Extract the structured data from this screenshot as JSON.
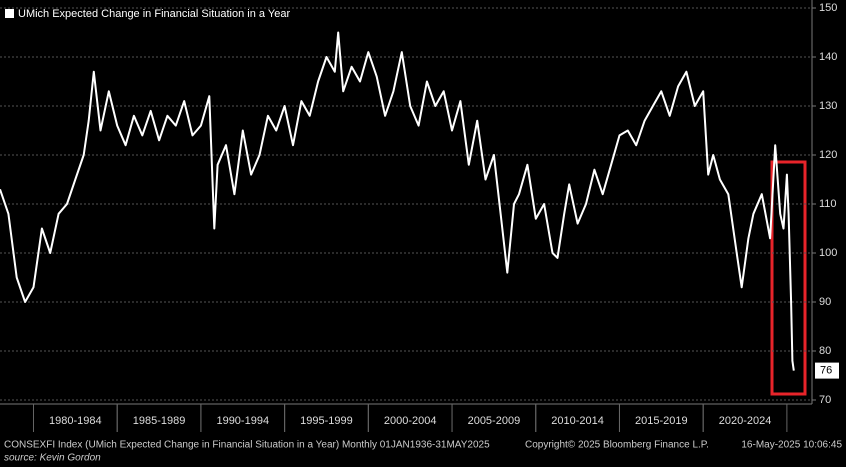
{
  "chart_data": {
    "type": "line",
    "legend_title": "UMich Expected Change in Financial Situation in a Year",
    "series": [
      {
        "name": "UMich Expected Change in Financial Situation in a Year",
        "color": "#ffffff",
        "x": [
          1978,
          1978.5,
          1979,
          1979.5,
          1980,
          1980.5,
          1981,
          1981.5,
          1982,
          1982.5,
          1983,
          1983.3,
          1983.6,
          1984,
          1984.5,
          1985,
          1985.5,
          1986,
          1986.5,
          1987,
          1987.5,
          1988,
          1988.5,
          1989,
          1989.5,
          1990,
          1990.5,
          1990.8,
          1991,
          1991.5,
          1992,
          1992.5,
          1993,
          1993.5,
          1994,
          1994.5,
          1995,
          1995.5,
          1996,
          1996.5,
          1997,
          1997.5,
          1998,
          1998.2,
          1998.5,
          1999,
          1999.5,
          2000,
          2000.5,
          2001,
          2001.5,
          2002,
          2002.5,
          2003,
          2003.5,
          2004,
          2004.5,
          2005,
          2005.5,
          2006,
          2006.5,
          2007,
          2007.5,
          2008,
          2008.3,
          2008.7,
          2009,
          2009.5,
          2010,
          2010.5,
          2011,
          2011.3,
          2011.7,
          2012,
          2012.5,
          2013,
          2013.5,
          2014,
          2014.5,
          2015,
          2015.5,
          2016,
          2016.5,
          2017,
          2017.5,
          2018,
          2018.5,
          2019,
          2019.5,
          2020,
          2020.3,
          2020.6,
          2021,
          2021.5,
          2022,
          2022.3,
          2022.7,
          2023,
          2023.5,
          2024,
          2024.3,
          2024.6,
          2024.8,
          2025,
          2025.1,
          2025.25,
          2025.33,
          2025.41
        ],
        "values": [
          113,
          108,
          95,
          90,
          93,
          105,
          100,
          108,
          110,
          115,
          120,
          127,
          137,
          125,
          133,
          126,
          122,
          128,
          124,
          129,
          123,
          128,
          126,
          131,
          124,
          126,
          132,
          105,
          118,
          122,
          112,
          125,
          116,
          120,
          128,
          125,
          130,
          122,
          131,
          128,
          135,
          140,
          137,
          145,
          133,
          138,
          135,
          141,
          136,
          128,
          133,
          141,
          130,
          126,
          135,
          130,
          133,
          125,
          131,
          118,
          127,
          115,
          120,
          105,
          96,
          110,
          112,
          118,
          107,
          110,
          100,
          99,
          108,
          114,
          106,
          110,
          117,
          112,
          118,
          124,
          125,
          122,
          127,
          130,
          133,
          128,
          134,
          137,
          130,
          133,
          116,
          120,
          115,
          112,
          100,
          93,
          103,
          108,
          112,
          103,
          122,
          108,
          105,
          116,
          108,
          90,
          78,
          76
        ]
      }
    ],
    "xlim": [
      1978,
      2026.5
    ],
    "xticks": [
      {
        "value": 1982.5,
        "label": "1980-1984"
      },
      {
        "value": 1987.5,
        "label": "1985-1989"
      },
      {
        "value": 1992.5,
        "label": "1990-1994"
      },
      {
        "value": 1997.5,
        "label": "1995-1999"
      },
      {
        "value": 2002.5,
        "label": "2000-2004"
      },
      {
        "value": 2007.5,
        "label": "2005-2009"
      },
      {
        "value": 2012.5,
        "label": "2010-2014"
      },
      {
        "value": 2017.5,
        "label": "2015-2019"
      },
      {
        "value": 2022.5,
        "label": "2020-2024"
      }
    ],
    "ylim": [
      70,
      150
    ],
    "yticks": [
      70,
      80,
      90,
      100,
      110,
      120,
      130,
      140,
      150
    ],
    "grid": true,
    "footer": {
      "index": "CONSEXFI Index (UMich Expected Change in Financial Situation in a Year)  Monthly 01JAN1936-31MAY2025",
      "copyright": "Copyright© 2025 Bloomberg Finance L.P.",
      "timestamp": "16-May-2025 10:06:45",
      "source": "source: Kevin Gordon"
    }
  }
}
